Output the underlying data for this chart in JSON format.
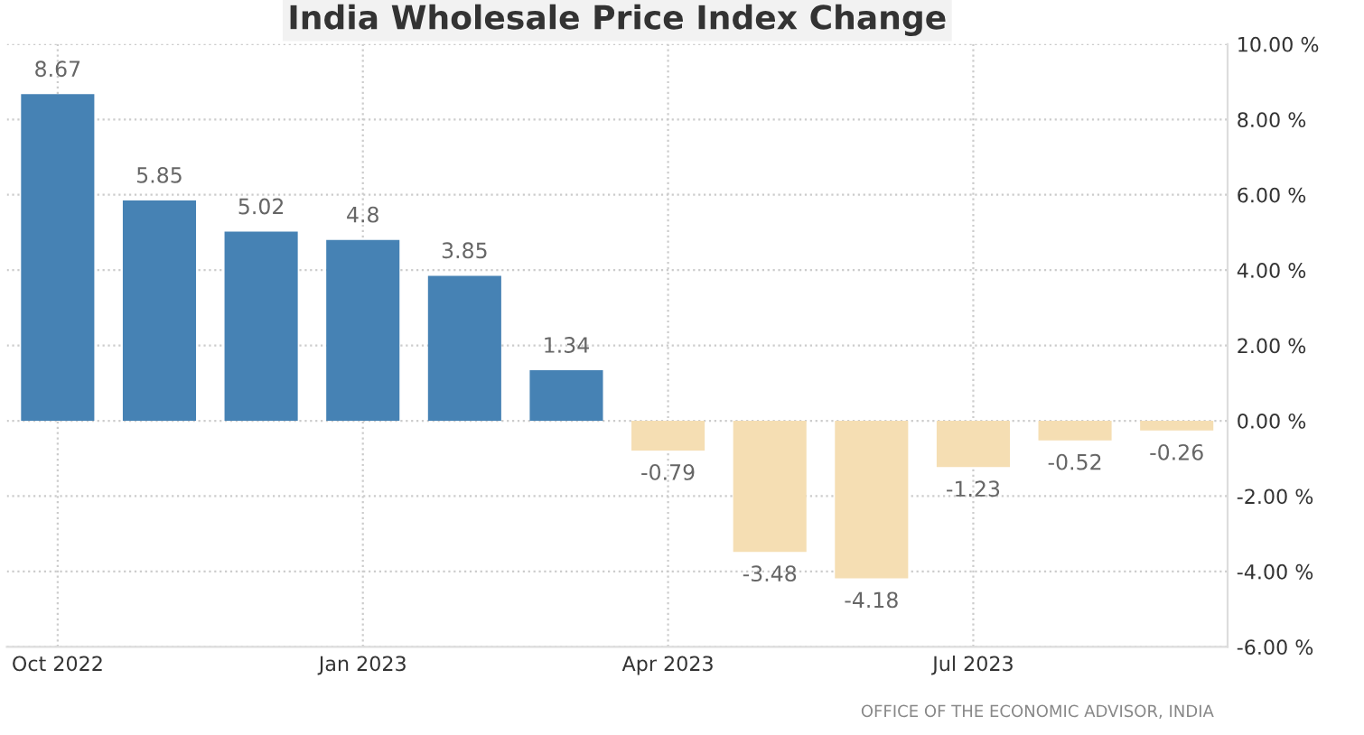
{
  "chart_data": {
    "type": "bar",
    "title": "India Wholesale Price Index Change",
    "categories": [
      "Oct 2022",
      null,
      null,
      "Jan 2023",
      null,
      null,
      "Apr 2023",
      null,
      null,
      "Jul 2023",
      null,
      null
    ],
    "values": [
      8.67,
      5.85,
      5.02,
      4.8,
      3.85,
      1.34,
      -0.79,
      -3.48,
      -4.18,
      -1.23,
      -0.52,
      -0.26
    ],
    "colors": [
      "#4682b4",
      "#4682b4",
      "#4682b4",
      "#4682b4",
      "#4682b4",
      "#4682b4",
      "#f5deb3",
      "#f5deb3",
      "#f5deb3",
      "#f5deb3",
      "#f5deb3",
      "#f5deb3"
    ],
    "ylim": [
      -6,
      10
    ],
    "yticks": [
      {
        "value": -6,
        "label": "-6.00 %"
      },
      {
        "value": -4,
        "label": "-4.00 %"
      },
      {
        "value": -2,
        "label": "-2.00 %"
      },
      {
        "value": 0,
        "label": "0.00 %"
      },
      {
        "value": 2,
        "label": "2.00 %"
      },
      {
        "value": 4,
        "label": "4.00 %"
      },
      {
        "value": 6,
        "label": "6.00 %"
      },
      {
        "value": 8,
        "label": "8.00 %"
      },
      {
        "value": 10,
        "label": "10.00 %"
      }
    ],
    "data_labels": true,
    "grid": true,
    "annotations": [
      "OFFICE OF THE ECONOMIC ADVISOR, INDIA"
    ]
  }
}
